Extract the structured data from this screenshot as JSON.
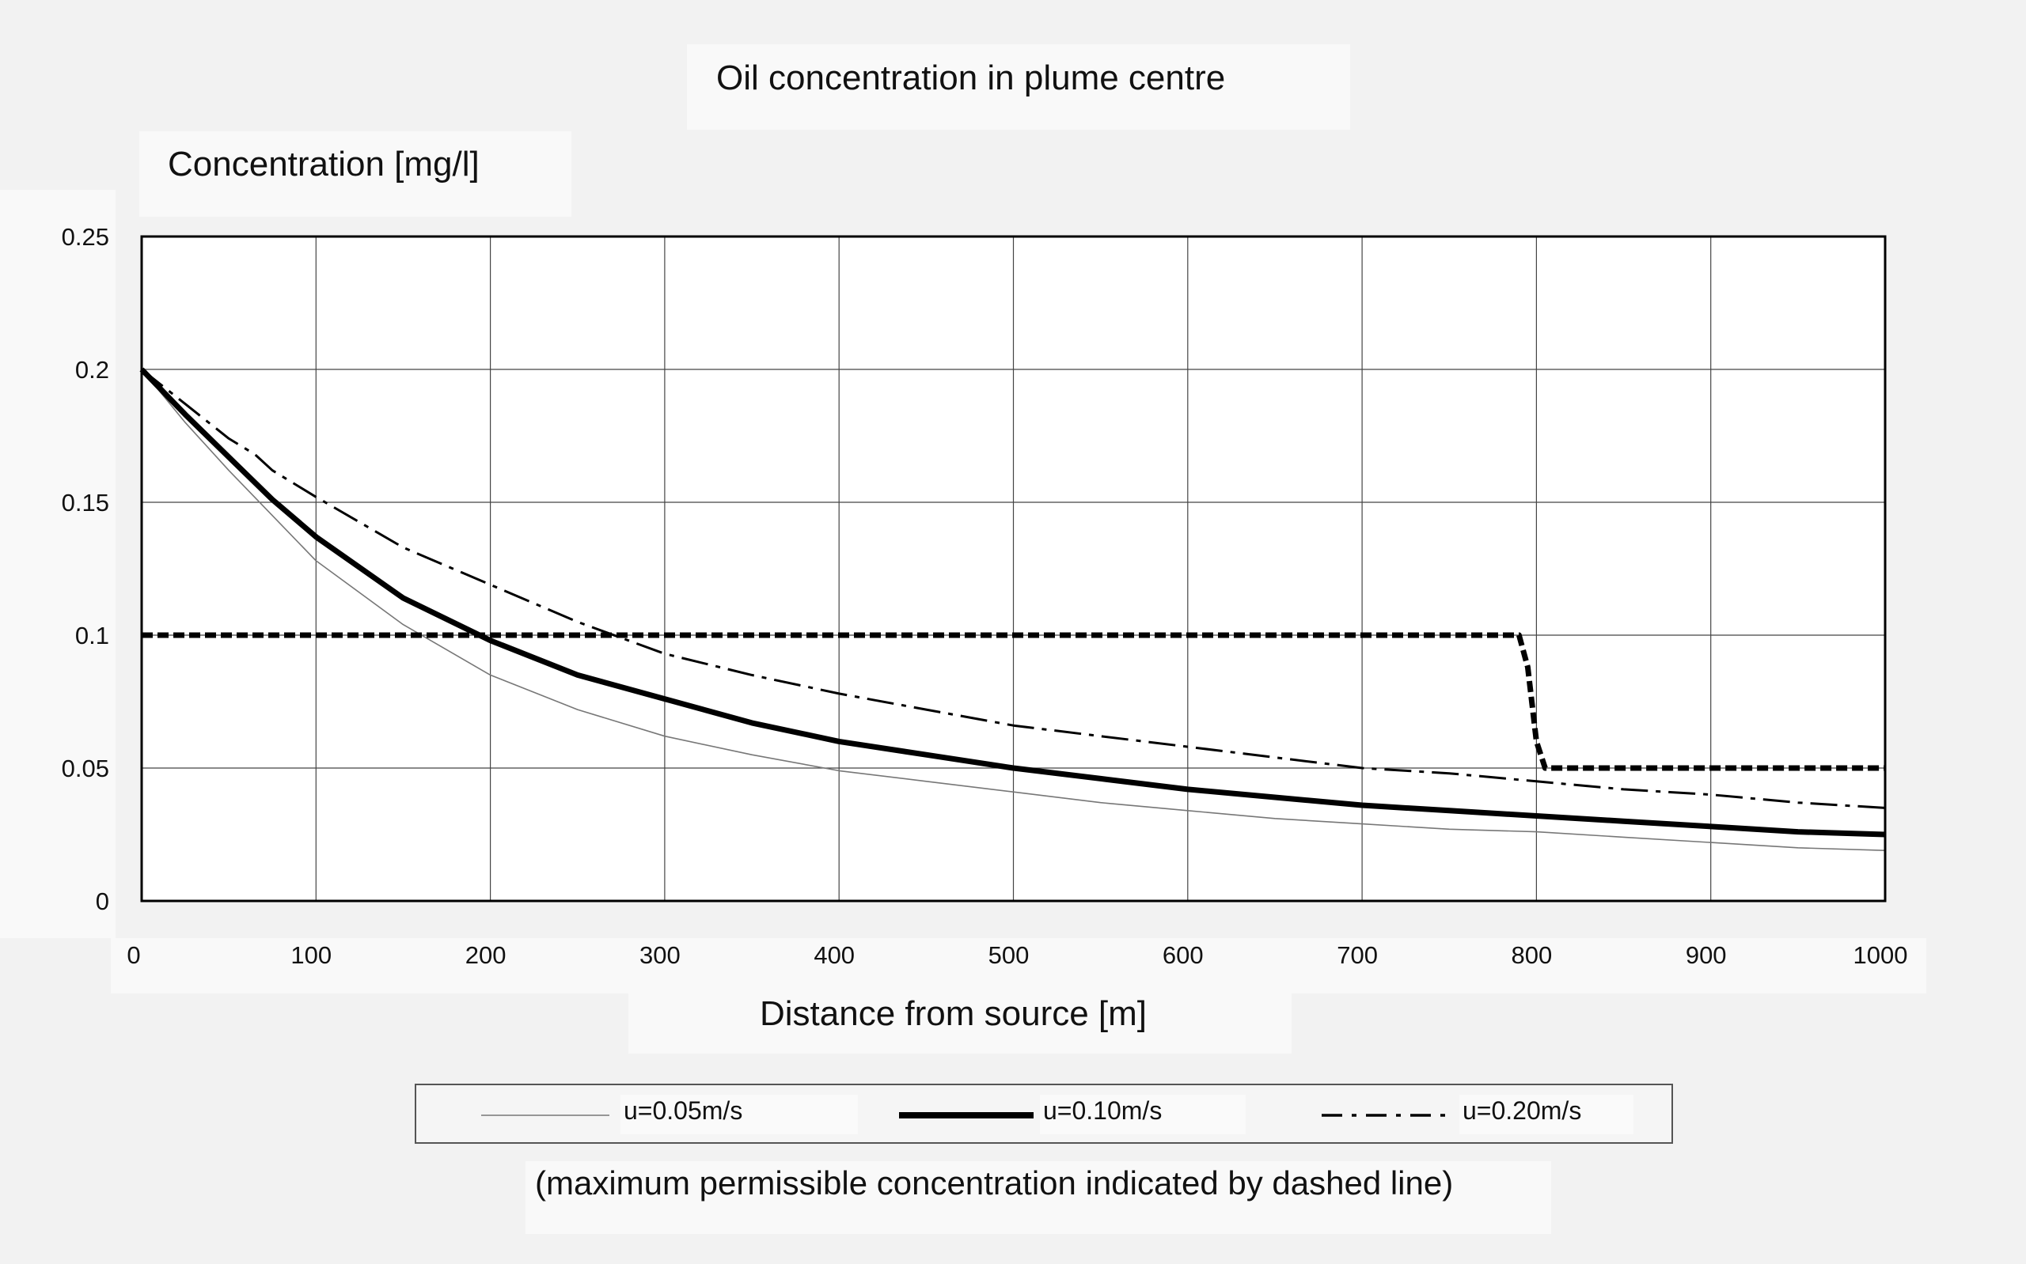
{
  "title": "Oil concentration in plume centre",
  "ylabel": "Concentration [mg/l]",
  "xlabel": "Distance from source [m]",
  "note": "(maximum permissible concentration indicated by dashed line)",
  "legend": {
    "items": [
      {
        "label": "u=0.05m/s",
        "style": "thin"
      },
      {
        "label": "u=0.10m/s",
        "style": "thick"
      },
      {
        "label": "u=0.20m/s",
        "style": "dashdot"
      }
    ]
  },
  "ytick_labels": [
    "0",
    "0.05",
    "0.1",
    "0.15",
    "0.2",
    "0.25"
  ],
  "xtick_labels": [
    "0",
    "100",
    "200",
    "300",
    "400",
    "500",
    "600",
    "700",
    "800",
    "900",
    "1000"
  ],
  "chart_data": {
    "type": "line",
    "title": "Oil concentration in plume centre",
    "xlabel": "Distance from source [m]",
    "ylabel": "Concentration [mg/l]",
    "xlim": [
      0,
      1000
    ],
    "ylim": [
      0,
      0.25
    ],
    "xticks": [
      0,
      100,
      200,
      300,
      400,
      500,
      600,
      700,
      800,
      900,
      1000
    ],
    "yticks": [
      0,
      0.05,
      0.1,
      0.15,
      0.2,
      0.25
    ],
    "grid": true,
    "legend_position": "bottom",
    "series": [
      {
        "name": "u=0.05m/s",
        "style": "thin",
        "color": "#777777",
        "x": [
          0,
          25,
          50,
          75,
          100,
          150,
          200,
          250,
          300,
          350,
          400,
          450,
          500,
          550,
          600,
          650,
          700,
          750,
          800,
          850,
          900,
          950,
          1000
        ],
        "y": [
          0.2,
          0.18,
          0.162,
          0.145,
          0.128,
          0.104,
          0.085,
          0.072,
          0.062,
          0.055,
          0.049,
          0.045,
          0.041,
          0.037,
          0.034,
          0.031,
          0.029,
          0.027,
          0.026,
          0.024,
          0.022,
          0.02,
          0.019
        ]
      },
      {
        "name": "u=0.10m/s",
        "style": "thick",
        "color": "#000000",
        "x": [
          0,
          25,
          50,
          75,
          100,
          150,
          200,
          250,
          300,
          350,
          400,
          450,
          500,
          550,
          600,
          650,
          700,
          750,
          800,
          850,
          900,
          950,
          1000
        ],
        "y": [
          0.2,
          0.183,
          0.167,
          0.151,
          0.137,
          0.114,
          0.098,
          0.085,
          0.076,
          0.067,
          0.06,
          0.055,
          0.05,
          0.046,
          0.042,
          0.039,
          0.036,
          0.034,
          0.032,
          0.03,
          0.028,
          0.026,
          0.025
        ]
      },
      {
        "name": "u=0.20m/s",
        "style": "dashdot",
        "color": "#000000",
        "x": [
          0,
          25,
          50,
          65,
          75,
          100,
          150,
          200,
          250,
          300,
          350,
          400,
          450,
          500,
          550,
          600,
          650,
          700,
          750,
          800,
          850,
          900,
          950,
          1000
        ],
        "y": [
          0.2,
          0.187,
          0.174,
          0.168,
          0.162,
          0.152,
          0.133,
          0.119,
          0.105,
          0.093,
          0.085,
          0.078,
          0.072,
          0.066,
          0.062,
          0.058,
          0.054,
          0.05,
          0.048,
          0.045,
          0.042,
          0.04,
          0.037,
          0.035
        ]
      },
      {
        "name": "",
        "style": "dashed",
        "color": "#000000",
        "x": [
          0,
          785,
          790,
          795,
          800,
          805,
          1000
        ],
        "y": [
          0.1,
          0.1,
          0.1,
          0.088,
          0.06,
          0.05,
          0.05
        ]
      }
    ]
  }
}
